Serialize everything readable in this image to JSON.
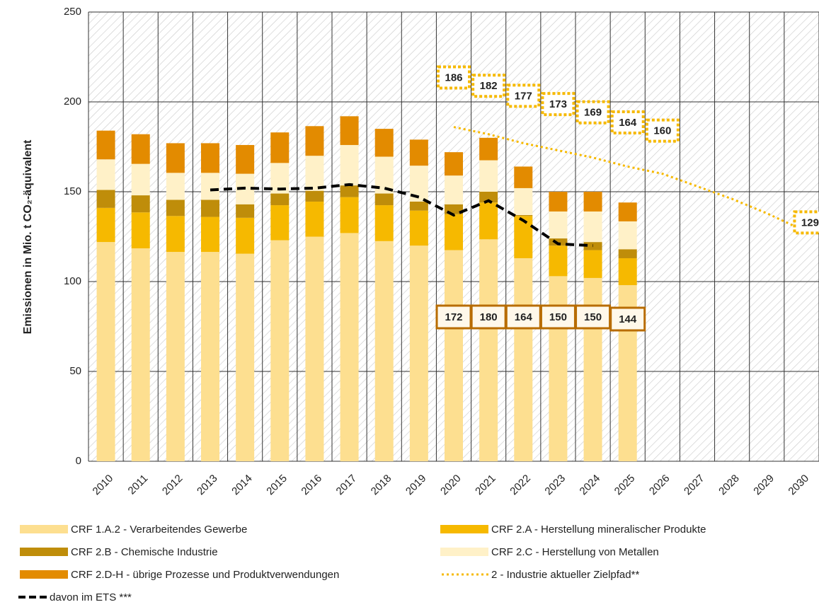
{
  "chart_data": {
    "type": "bar",
    "stacked": true,
    "y_axis_label": "Emissionen in Mio. t CO₂-äquivalent",
    "categories": [
      "2010",
      "2011",
      "2012",
      "2013",
      "2014",
      "2015",
      "2016",
      "2017",
      "2018",
      "2019",
      "2020",
      "2021",
      "2022",
      "2023",
      "2024",
      "2025",
      "2026",
      "2027",
      "2028",
      "2029",
      "2030"
    ],
    "ylim": [
      0,
      250
    ],
    "yticks": [
      0,
      50,
      100,
      150,
      200,
      250
    ],
    "grid": true,
    "series": [
      {
        "name": "CRF 1.A.2 - Verarbeitendes Gewerbe",
        "color": "#fddf90",
        "values": [
          122,
          118.5,
          116.5,
          116.5,
          115.5,
          123,
          125,
          127,
          122.5,
          120,
          117.5,
          123.5,
          113,
          103,
          102,
          98,
          null,
          null,
          null,
          null,
          null
        ]
      },
      {
        "name": "CRF 2.A - Herstellung mineralischer Produkte",
        "color": "#f6b900",
        "values": [
          19,
          20,
          20,
          19.5,
          20,
          19.5,
          19.5,
          20,
          20,
          19.5,
          20,
          20.5,
          23.5,
          17,
          15.5,
          15,
          null,
          null,
          null,
          null,
          null
        ]
      },
      {
        "name": "CRF 2.B - Chemische Industrie",
        "color": "#bf8d0a",
        "values": [
          10,
          9.5,
          9,
          9.5,
          7.5,
          6.5,
          6,
          6.5,
          6.5,
          5,
          5.5,
          6,
          0.5,
          4,
          4.5,
          5,
          null,
          null,
          null,
          null,
          null
        ]
      },
      {
        "name": "CRF 2.C - Herstellung von Metallen",
        "color": "#fff1c8",
        "values": [
          17,
          17.5,
          15,
          15,
          17,
          17,
          19.5,
          22.5,
          20.5,
          20,
          16,
          17.5,
          15,
          15,
          17,
          15.5,
          null,
          null,
          null,
          null,
          null
        ]
      },
      {
        "name": "CRF 2.D-H - übrige Prozesse und Produktverwendungen",
        "color": "#e38b00",
        "values": [
          16,
          16.5,
          16.5,
          16.5,
          16,
          17,
          16.5,
          16,
          15.5,
          14.5,
          13,
          12.5,
          12,
          11,
          11,
          10.5,
          null,
          null,
          null,
          null,
          null
        ]
      }
    ],
    "total_labels": [
      null,
      null,
      null,
      null,
      null,
      null,
      null,
      null,
      null,
      null,
      "172",
      "180",
      "164",
      "150",
      "150",
      "144",
      null,
      null,
      null,
      null,
      null
    ],
    "lines": [
      {
        "name": "2 - Industrie aktueller Zielpfad**",
        "color": "#f6b900",
        "style": "dotted",
        "values": [
          null,
          null,
          null,
          null,
          null,
          null,
          null,
          null,
          null,
          null,
          186,
          182,
          177,
          173,
          169,
          164,
          160,
          153,
          146,
          138,
          129
        ],
        "value_labels": [
          null,
          null,
          null,
          null,
          null,
          null,
          null,
          null,
          null,
          null,
          "186",
          "182",
          "177",
          "173",
          "169",
          "164",
          "160",
          null,
          null,
          null,
          "129"
        ]
      },
      {
        "name": "davon im ETS ***",
        "color": "#000000",
        "style": "dashed",
        "values": [
          null,
          null,
          null,
          151,
          152,
          151.5,
          152,
          154,
          152,
          147,
          137,
          145,
          134,
          121,
          120,
          null,
          null,
          null,
          null,
          null,
          null
        ]
      }
    ]
  }
}
